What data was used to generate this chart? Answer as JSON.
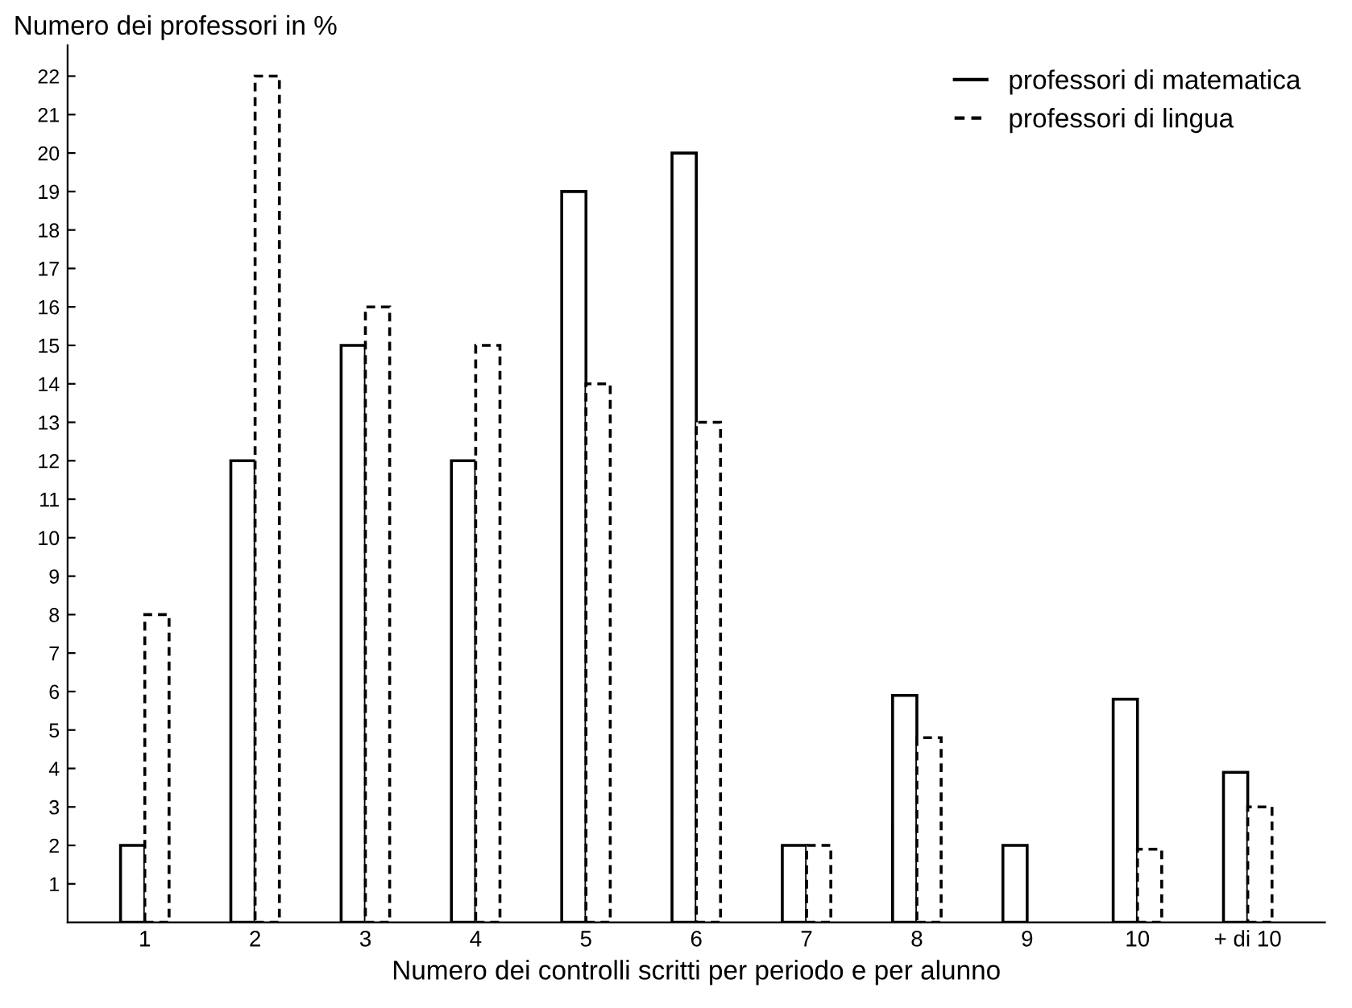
{
  "chart_data": {
    "type": "bar",
    "ylabel": "Numero dei professori in %",
    "xlabel": "Numero dei controlli scritti per periodo e per alunno",
    "categories": [
      "1",
      "2",
      "3",
      "4",
      "5",
      "6",
      "7",
      "8",
      "9",
      "10",
      "+ di 10"
    ],
    "series": [
      {
        "name": "professori di matematica",
        "color": "#000000",
        "line_style": "solid",
        "values": [
          2,
          12,
          15,
          12,
          19,
          20,
          2,
          5.9,
          2,
          5.8,
          3.9
        ]
      },
      {
        "name": "professori di lingua",
        "color": "#000000",
        "line_style": "dashed",
        "values": [
          8,
          22,
          16,
          15,
          14,
          13,
          2,
          4.8,
          null,
          1.9,
          3
        ]
      }
    ],
    "ylim": [
      0,
      22.8
    ],
    "yticks": [
      1,
      2,
      3,
      4,
      5,
      6,
      7,
      8,
      9,
      10,
      11,
      12,
      13,
      14,
      15,
      16,
      17,
      18,
      19,
      20,
      21,
      22
    ],
    "grid": false,
    "legend": "top right"
  }
}
